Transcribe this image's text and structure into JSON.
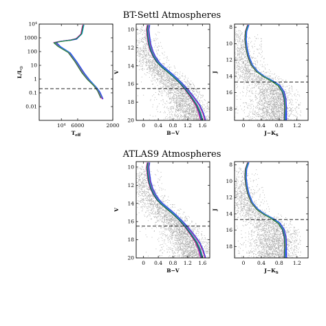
{
  "colors": {
    "points": "#a8a8a8",
    "dashed": "#000000",
    "isochrones": [
      "#c000c0",
      "#e05050",
      "#2040ff",
      "#20b0b0",
      "#108020"
    ]
  },
  "chart_data": [
    {
      "id": "hr",
      "type": "line",
      "title": "",
      "xlabel": "T",
      "xlabel_sub": "eff",
      "ylabel": "L/L",
      "ylabel_sub": "☉",
      "xscale": "log",
      "yscale": "log",
      "xlim": [
        20000,
        2000
      ],
      "ylim": [
        0.001,
        10000
      ],
      "xticks": [
        {
          "v": 10000,
          "label": "10⁴"
        },
        {
          "v": 6000,
          "label": "6000"
        },
        {
          "v": 2000,
          "label": "2000"
        }
      ],
      "yticks": [
        {
          "v": 10000,
          "label": "10⁴"
        },
        {
          "v": 1000,
          "label": "1000"
        },
        {
          "v": 100,
          "label": "100"
        },
        {
          "v": 10,
          "label": "10"
        },
        {
          "v": 1,
          "label": "1"
        },
        {
          "v": 0.1,
          "label": "0.1"
        },
        {
          "v": 0.01,
          "label": "0.01"
        }
      ],
      "dashed_y": 0.2,
      "series": [
        {
          "x": [
            5000,
            5300,
            6200,
            7500,
            10500,
            12500,
            11000,
            8000,
            6500,
            5200,
            4400,
            3600,
            3200,
            3000,
            2900
          ],
          "y": [
            9000,
            2000,
            900,
            700,
            550,
            450,
            250,
            90,
            20,
            3,
            1,
            0.35,
            0.15,
            0.07,
            0.045
          ]
        },
        {
          "x": [
            5100,
            5400,
            6300,
            7600,
            10400,
            12300,
            10800,
            7900,
            6400,
            5100,
            4300,
            3550,
            3150,
            2950,
            2850
          ],
          "y": [
            8500,
            1900,
            850,
            680,
            560,
            460,
            240,
            85,
            18,
            2.8,
            0.9,
            0.3,
            0.13,
            0.06,
            0.04
          ]
        },
        {
          "x": [
            5200,
            5500,
            6400,
            7700,
            10300,
            12100,
            10600,
            7800,
            6300,
            5000,
            4250,
            3500,
            3100,
            2900,
            2800
          ],
          "y": [
            8000,
            1800,
            800,
            660,
            570,
            470,
            230,
            80,
            17,
            2.6,
            0.85,
            0.28,
            0.12,
            0.055,
            0.035
          ]
        }
      ]
    },
    {
      "id": "bv1",
      "type": "scatter",
      "title": "BT-Settl Atmospheres",
      "xlabel": "B−V",
      "ylabel": "V",
      "xlim": [
        -0.2,
        1.8
      ],
      "ylim": [
        20,
        9.4
      ],
      "xticks": [
        0,
        0.4,
        0.8,
        1.2,
        1.6
      ],
      "yticks": [
        10,
        12,
        14,
        16,
        18,
        20
      ],
      "dashed_y": 16.5,
      "scatter": {
        "n": 2600,
        "region": "main-sequence",
        "x_range": [
          0.0,
          1.8
        ],
        "y_range": [
          9.6,
          20
        ]
      },
      "series": [
        {
          "x": [
            0.12,
            0.1,
            0.12,
            0.15,
            0.2,
            0.28,
            0.38,
            0.5,
            0.65,
            0.82,
            1.0,
            1.15,
            1.3,
            1.45,
            1.55,
            1.6
          ],
          "y": [
            9.5,
            10,
            10.8,
            11.6,
            12.3,
            13.0,
            13.6,
            14.1,
            14.6,
            15.2,
            15.9,
            16.6,
            17.4,
            18.3,
            19.2,
            20
          ]
        },
        {
          "x": [
            0.1,
            0.08,
            0.1,
            0.13,
            0.18,
            0.26,
            0.36,
            0.48,
            0.63,
            0.8,
            0.98,
            1.12,
            1.27,
            1.41,
            1.5,
            1.55
          ],
          "y": [
            9.5,
            10,
            10.8,
            11.6,
            12.3,
            13.0,
            13.6,
            14.1,
            14.6,
            15.2,
            15.9,
            16.6,
            17.4,
            18.3,
            19.2,
            20
          ]
        },
        {
          "x": [
            0.14,
            0.12,
            0.14,
            0.17,
            0.22,
            0.3,
            0.4,
            0.52,
            0.67,
            0.84,
            1.02,
            1.18,
            1.34,
            1.5,
            1.6,
            1.66
          ],
          "y": [
            9.5,
            10,
            10.8,
            11.6,
            12.3,
            13.0,
            13.6,
            14.1,
            14.6,
            15.2,
            15.9,
            16.6,
            17.4,
            18.3,
            19.2,
            20
          ]
        }
      ]
    },
    {
      "id": "jk1",
      "type": "scatter",
      "title": "",
      "xlabel": "J−K",
      "xlabel_sub": "S",
      "ylabel": "J",
      "xlim": [
        -0.2,
        1.45
      ],
      "ylim": [
        19.4,
        7.6
      ],
      "xticks": [
        0,
        0.4,
        0.8,
        1.2
      ],
      "yticks": [
        8,
        10,
        12,
        14,
        16,
        18
      ],
      "dashed_y": 14.7,
      "scatter": {
        "n": 2600,
        "region": "main-sequence",
        "x_range": [
          0.0,
          1.4
        ],
        "y_range": [
          8.2,
          19.4
        ]
      },
      "series": [
        {
          "x": [
            0.1,
            0.05,
            0.04,
            0.06,
            0.1,
            0.18,
            0.3,
            0.45,
            0.62,
            0.78,
            0.88,
            0.92,
            0.93,
            0.92
          ],
          "y": [
            7.7,
            8.5,
            9.5,
            10.5,
            11.5,
            12.6,
            13.4,
            14.0,
            14.5,
            15.1,
            15.9,
            16.8,
            18.0,
            19.4
          ]
        },
        {
          "x": [
            0.1,
            0.05,
            0.04,
            0.06,
            0.1,
            0.18,
            0.3,
            0.45,
            0.63,
            0.8,
            0.9,
            0.94,
            0.95,
            0.95
          ],
          "y": [
            7.7,
            8.5,
            9.5,
            10.5,
            11.5,
            12.6,
            13.4,
            14.0,
            14.5,
            15.1,
            15.9,
            16.8,
            18.0,
            19.4
          ]
        },
        {
          "x": [
            0.1,
            0.05,
            0.04,
            0.06,
            0.1,
            0.18,
            0.3,
            0.45,
            0.61,
            0.77,
            0.86,
            0.9,
            0.92,
            0.93
          ],
          "y": [
            7.7,
            8.5,
            9.5,
            10.5,
            11.5,
            12.6,
            13.4,
            14.0,
            14.5,
            15.1,
            15.9,
            16.8,
            18.0,
            19.4
          ]
        }
      ]
    },
    {
      "id": "bv2",
      "type": "scatter",
      "title": "ATLAS9 Atmospheres",
      "xlabel": "B−V",
      "ylabel": "V",
      "xlim": [
        -0.2,
        1.8
      ],
      "ylim": [
        20,
        9.4
      ],
      "xticks": [
        0,
        0.4,
        0.8,
        1.2,
        1.6
      ],
      "yticks": [
        10,
        12,
        14,
        16,
        18,
        20
      ],
      "dashed_y": 16.5,
      "scatter": {
        "n": 2600,
        "region": "main-sequence",
        "x_range": [
          0.0,
          1.8
        ],
        "y_range": [
          9.6,
          20
        ]
      },
      "series": [
        {
          "x": [
            0.12,
            0.1,
            0.12,
            0.15,
            0.2,
            0.28,
            0.38,
            0.5,
            0.65,
            0.82,
            1.0,
            1.15,
            1.3,
            1.45,
            1.55,
            1.6
          ],
          "y": [
            9.5,
            10,
            10.8,
            11.6,
            12.3,
            13.0,
            13.6,
            14.1,
            14.6,
            15.2,
            15.9,
            16.6,
            17.4,
            18.3,
            19.2,
            20
          ]
        },
        {
          "x": [
            0.1,
            0.08,
            0.1,
            0.13,
            0.18,
            0.26,
            0.36,
            0.48,
            0.63,
            0.8,
            0.98,
            1.12,
            1.27,
            1.41,
            1.5,
            1.55
          ],
          "y": [
            9.5,
            10,
            10.8,
            11.6,
            12.3,
            13.0,
            13.6,
            14.1,
            14.6,
            15.2,
            15.9,
            16.6,
            17.4,
            18.3,
            19.2,
            20
          ]
        },
        {
          "x": [
            0.14,
            0.12,
            0.14,
            0.17,
            0.22,
            0.3,
            0.4,
            0.52,
            0.67,
            0.84,
            1.02,
            1.18,
            1.34,
            1.5,
            1.6,
            1.66
          ],
          "y": [
            9.5,
            10,
            10.8,
            11.6,
            12.3,
            13.0,
            13.6,
            14.1,
            14.6,
            15.2,
            15.9,
            16.6,
            17.4,
            18.3,
            19.2,
            20
          ]
        }
      ]
    },
    {
      "id": "jk2",
      "type": "scatter",
      "title": "",
      "xlabel": "J−K",
      "xlabel_sub": "S",
      "ylabel": "J",
      "xlim": [
        -0.2,
        1.45
      ],
      "ylim": [
        19.4,
        7.6
      ],
      "xticks": [
        0,
        0.4,
        0.8,
        1.2
      ],
      "yticks": [
        8,
        10,
        12,
        14,
        16,
        18
      ],
      "dashed_y": 14.7,
      "scatter": {
        "n": 2600,
        "region": "main-sequence",
        "x_range": [
          0.0,
          1.4
        ],
        "y_range": [
          8.2,
          19.4
        ]
      },
      "series": [
        {
          "x": [
            0.1,
            0.05,
            0.04,
            0.06,
            0.1,
            0.18,
            0.3,
            0.45,
            0.62,
            0.78,
            0.88,
            0.92,
            0.93,
            0.92
          ],
          "y": [
            7.7,
            8.5,
            9.5,
            10.5,
            11.5,
            12.6,
            13.4,
            14.0,
            14.5,
            15.1,
            15.9,
            16.8,
            18.0,
            19.4
          ]
        },
        {
          "x": [
            0.1,
            0.05,
            0.04,
            0.06,
            0.1,
            0.18,
            0.3,
            0.45,
            0.63,
            0.8,
            0.9,
            0.94,
            0.95,
            0.95
          ],
          "y": [
            7.7,
            8.5,
            9.5,
            10.5,
            11.5,
            12.6,
            13.4,
            14.0,
            14.5,
            15.1,
            15.9,
            16.8,
            18.0,
            19.4
          ]
        },
        {
          "x": [
            0.1,
            0.05,
            0.04,
            0.06,
            0.1,
            0.18,
            0.3,
            0.45,
            0.61,
            0.77,
            0.86,
            0.9,
            0.92,
            0.93
          ],
          "y": [
            7.7,
            8.5,
            9.5,
            10.5,
            11.5,
            12.6,
            13.4,
            14.0,
            14.5,
            15.1,
            15.9,
            16.8,
            18.0,
            19.4
          ]
        }
      ]
    }
  ]
}
